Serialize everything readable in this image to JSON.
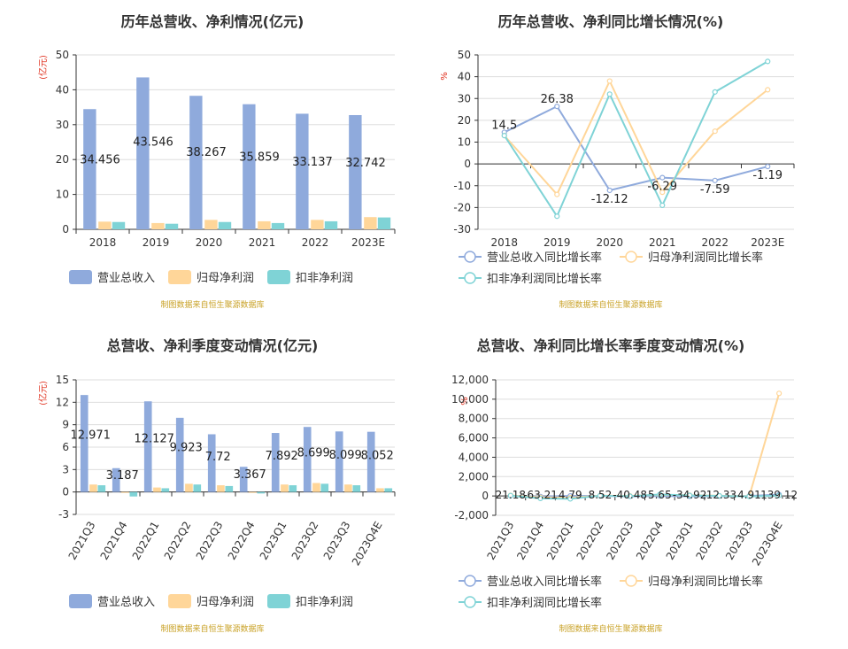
{
  "colors": {
    "revenue": "#8faadc",
    "net_profit": "#ffd699",
    "deducted_profit": "#7fd3d6",
    "grid": "#dddddd",
    "axis": "#333333"
  },
  "chart_data": [
    {
      "id": "annual-amounts",
      "type": "bar",
      "title": "历年总营收、净利情况(亿元)",
      "unit": "(亿元)",
      "categories": [
        "2018",
        "2019",
        "2020",
        "2021",
        "2022",
        "2023E"
      ],
      "ylim": [
        0,
        50
      ],
      "yticks": [
        0,
        10,
        20,
        30,
        40,
        50
      ],
      "series": [
        {
          "name": "营业总收入",
          "values": [
            34.456,
            43.546,
            38.267,
            35.859,
            33.137,
            32.742
          ],
          "labels": [
            "34.456",
            "43.546",
            "38.267",
            "35.859",
            "33.137",
            "32.742"
          ]
        },
        {
          "name": "归母净利润",
          "values": [
            2.2,
            1.8,
            2.7,
            2.3,
            2.7,
            3.5
          ]
        },
        {
          "name": "扣非净利润",
          "values": [
            2.1,
            1.6,
            2.1,
            1.8,
            2.3,
            3.4
          ]
        }
      ],
      "legend_position": "bottom",
      "source": "制图数据来自恒生聚源数据库"
    },
    {
      "id": "annual-growth",
      "type": "line",
      "title": "历年总营收、净利同比增长情况(%)",
      "unit": "%",
      "categories": [
        "2018",
        "2019",
        "2020",
        "2021",
        "2022",
        "2023E"
      ],
      "ylim": [
        -30,
        50
      ],
      "yticks": [
        -30,
        -20,
        -10,
        0,
        10,
        20,
        30,
        40,
        50
      ],
      "series": [
        {
          "name": "营业总收入同比增长率",
          "values": [
            14.5,
            26.38,
            -12.12,
            -6.29,
            -7.59,
            -1.19
          ],
          "labels": [
            "14.5",
            "26.38",
            "-12.12",
            "-6.29",
            "-7.59",
            "-1.19"
          ]
        },
        {
          "name": "归母净利润同比增长率",
          "values": [
            13,
            -14,
            38,
            -13,
            15,
            34
          ]
        },
        {
          "name": "扣非净利润同比增长率",
          "values": [
            13,
            -24,
            32,
            -19,
            33,
            47
          ]
        }
      ],
      "legend_position": "bottom",
      "source": "制图数据来自恒生聚源数据库"
    },
    {
      "id": "quarterly-amounts",
      "type": "bar",
      "title": "总营收、净利季度变动情况(亿元)",
      "unit": "(亿元)",
      "categories": [
        "2021Q3",
        "2021Q4",
        "2022Q1",
        "2022Q2",
        "2022Q3",
        "2022Q4",
        "2023Q1",
        "2023Q2",
        "2023Q3",
        "2023Q4E"
      ],
      "ylim": [
        -3,
        15
      ],
      "yticks": [
        -3,
        0,
        3,
        6,
        9,
        12,
        15
      ],
      "series": [
        {
          "name": "营业总收入",
          "values": [
            12.971,
            3.187,
            12.127,
            9.923,
            7.72,
            3.367,
            7.892,
            8.699,
            8.099,
            8.052
          ],
          "labels": [
            "12.971",
            "3.187",
            "12.127",
            "9.923",
            "7.72",
            "3.367",
            "7.892",
            "8.699",
            "8.099",
            "8.052"
          ]
        },
        {
          "name": "归母净利润",
          "values": [
            1.0,
            -0.1,
            0.6,
            1.1,
            0.9,
            -0.1,
            1.0,
            1.2,
            1.0,
            0.5
          ]
        },
        {
          "name": "扣非净利润",
          "values": [
            0.9,
            -0.6,
            0.5,
            1.0,
            0.8,
            -0.2,
            0.9,
            1.1,
            0.9,
            0.5
          ]
        }
      ],
      "legend_position": "bottom",
      "source": "制图数据来自恒生聚源数据库"
    },
    {
      "id": "quarterly-growth",
      "type": "line",
      "title": "总营收、净利同比增长率季度变动情况(%)",
      "unit": "%",
      "categories": [
        "2021Q3",
        "2021Q4",
        "2022Q1",
        "2022Q2",
        "2022Q3",
        "2022Q4",
        "2023Q1",
        "2023Q2",
        "2023Q3",
        "2023Q4E"
      ],
      "ylim": [
        -2000,
        12000
      ],
      "yticks": [
        -2000,
        0,
        2000,
        4000,
        6000,
        8000,
        10000,
        12000
      ],
      "ytick_labels": [
        "-2,000",
        "0",
        "2,000",
        "4,000",
        "6,000",
        "8,000",
        "10,000",
        "12,000"
      ],
      "series": [
        {
          "name": "营业总收入同比增长率",
          "values": [
            21.18,
            -63.21,
            4.79,
            8.52,
            -40.48,
            5.65,
            -34.92,
            -12.33,
            4.91,
            139.12
          ],
          "labels": [
            "21.18",
            "-63.21",
            "4.79",
            "8.52",
            "-40.48",
            "5.65",
            "-34.92",
            "-12.33",
            "4.91",
            "139.12"
          ]
        },
        {
          "name": "归母净利润同比增长率",
          "values": [
            60,
            -150,
            -180,
            40,
            10,
            120,
            80,
            20,
            -30,
            10600
          ]
        },
        {
          "name": "扣非净利润同比增长率",
          "values": [
            40,
            -250,
            -300,
            30,
            -20,
            150,
            60,
            10,
            -50,
            50
          ]
        }
      ],
      "legend_position": "bottom",
      "source": "制图数据来自恒生聚源数据库"
    }
  ]
}
